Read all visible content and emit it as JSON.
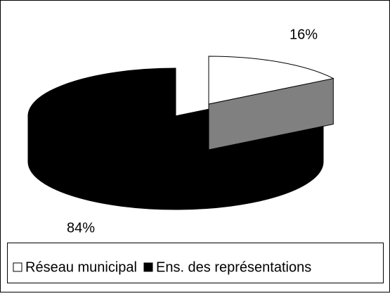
{
  "chart_data": {
    "type": "pie",
    "three_d": true,
    "categories": [
      "Réseau municipal",
      "Ens. des représentations"
    ],
    "values": [
      16,
      84
    ],
    "value_labels": [
      "16%",
      "84%"
    ],
    "colors": [
      "#ffffff",
      "#000000"
    ],
    "exploded": [
      true,
      false
    ],
    "legend": "bottom"
  }
}
